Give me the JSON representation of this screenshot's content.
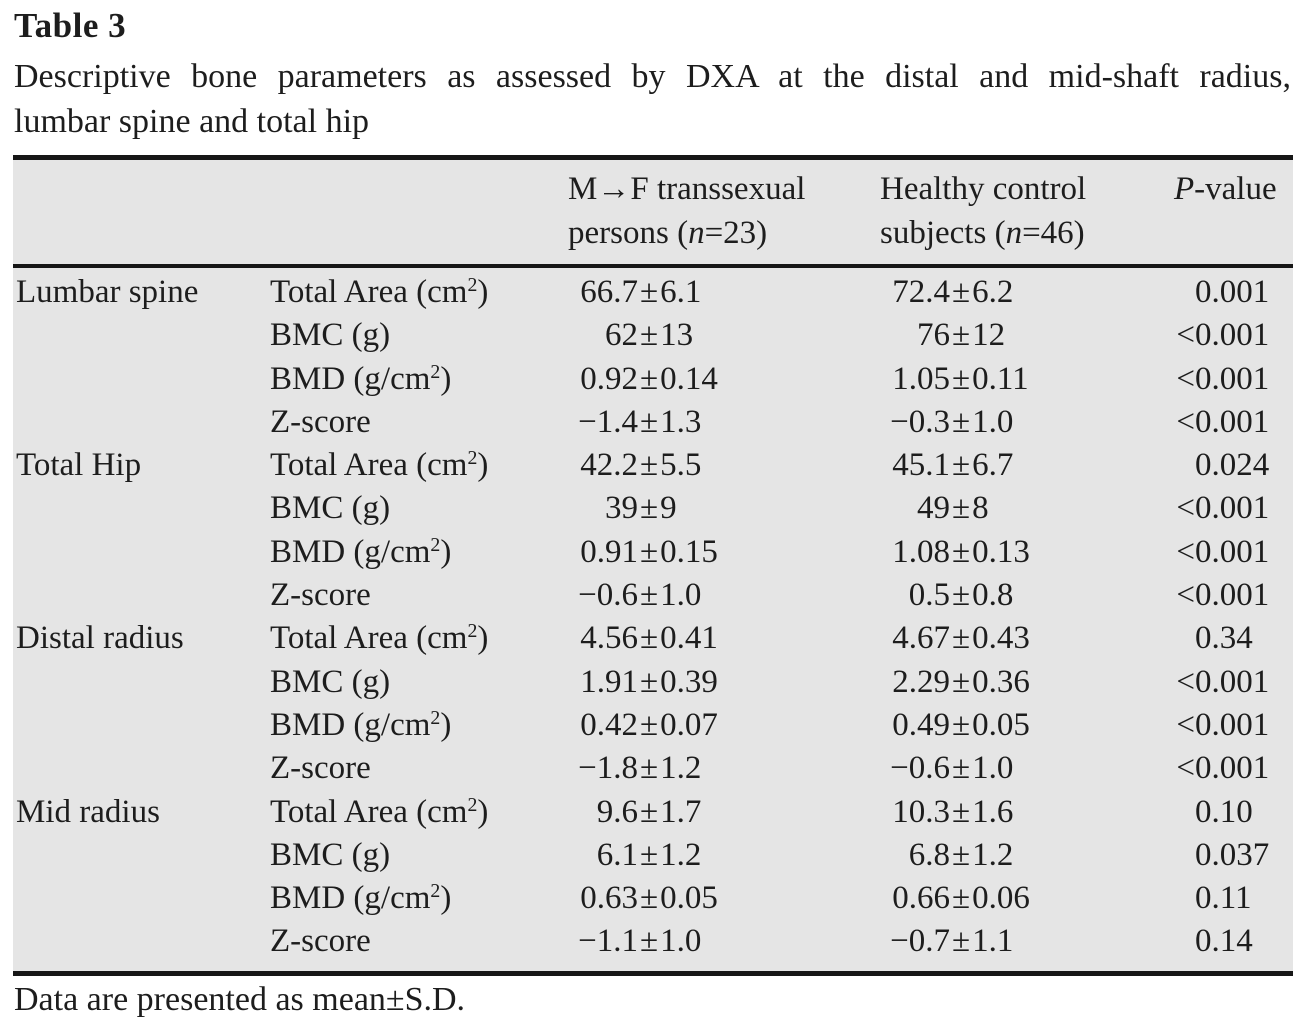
{
  "page": {
    "title": "Table 3",
    "caption_line1": "Descriptive bone parameters as assessed by DXA at the distal and mid-shaft radius,",
    "caption_line2": "lumbar spine and total hip",
    "footnote": "Data are presented as mean±S.D."
  },
  "colors": {
    "table_background": "#e5e5e5",
    "rule": "#161616",
    "text": "#1d1d1d"
  },
  "table": {
    "headers": {
      "mtf": {
        "line1": "M→F transsexual",
        "line2_pre": "persons (",
        "line2_var": "n",
        "line2_post": "=23)"
      },
      "control": {
        "line1": "Healthy control",
        "line2_pre": "subjects (",
        "line2_var": "n",
        "line2_post": "=46)"
      },
      "pvalue_italic": "P",
      "pvalue_rest": "-value"
    },
    "sections": [
      {
        "name": "Lumbar spine",
        "rows": [
          {
            "param": "Total Area (cm²)",
            "mtf": "66.7±6.1",
            "control": "72.4±6.2",
            "p": "0.001"
          },
          {
            "param": "BMC (g)",
            "mtf": "62±13",
            "control": "76±12",
            "p": "<0.001"
          },
          {
            "param": "BMD (g/cm²)",
            "mtf": "0.92±0.14",
            "control": "1.05±0.11",
            "p": "<0.001"
          },
          {
            "param": "Z-score",
            "mtf": "−1.4±1.3",
            "control": "−0.3±1.0",
            "p": "<0.001"
          }
        ]
      },
      {
        "name": "Total Hip",
        "rows": [
          {
            "param": "Total Area (cm²)",
            "mtf": "42.2±5.5",
            "control": "45.1±6.7",
            "p": "0.024"
          },
          {
            "param": "BMC (g)",
            "mtf": "39±9",
            "control": "49±8",
            "p": "<0.001"
          },
          {
            "param": "BMD (g/cm²)",
            "mtf": "0.91±0.15",
            "control": "1.08±0.13",
            "p": "<0.001"
          },
          {
            "param": "Z-score",
            "mtf": "−0.6±1.0",
            "control": "0.5±0.8",
            "p": "<0.001"
          }
        ]
      },
      {
        "name": "Distal radius",
        "rows": [
          {
            "param": "Total Area (cm²)",
            "mtf": "4.56±0.41",
            "control": "4.67±0.43",
            "p": "0.34"
          },
          {
            "param": "BMC (g)",
            "mtf": "1.91±0.39",
            "control": "2.29±0.36",
            "p": "<0.001"
          },
          {
            "param": "BMD (g/cm²)",
            "mtf": "0.42±0.07",
            "control": "0.49±0.05",
            "p": "<0.001"
          },
          {
            "param": "Z-score",
            "mtf": "−1.8±1.2",
            "control": "−0.6±1.0",
            "p": "<0.001"
          }
        ]
      },
      {
        "name": "Mid radius",
        "rows": [
          {
            "param": "Total Area (cm²)",
            "mtf": "9.6±1.7",
            "control": "10.3±1.6",
            "p": "0.10"
          },
          {
            "param": "BMC (g)",
            "mtf": "6.1±1.2",
            "control": "6.8±1.2",
            "p": "0.037"
          },
          {
            "param": "BMD (g/cm²)",
            "mtf": "0.63±0.05",
            "control": "0.66±0.06",
            "p": "0.11"
          },
          {
            "param": "Z-score",
            "mtf": "−1.1±1.0",
            "control": "−0.7±1.1",
            "p": "0.14"
          }
        ]
      }
    ]
  }
}
